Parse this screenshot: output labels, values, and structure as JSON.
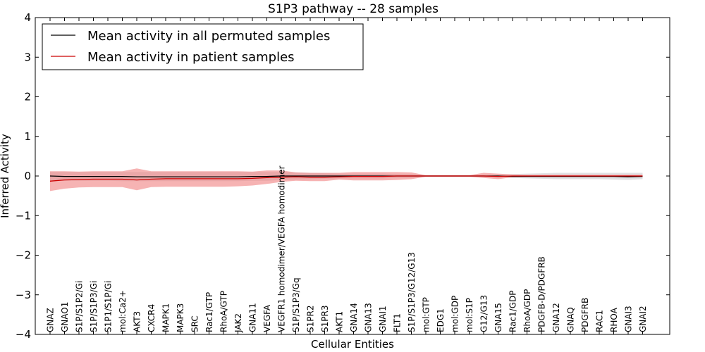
{
  "chart_data": {
    "type": "line",
    "title": "S1P3 pathway -- 28 samples",
    "xlabel": "Cellular Entities",
    "ylabel": "Inferred Activity",
    "ylim": [
      -4,
      4
    ],
    "yticks": [
      "4",
      "3",
      "2",
      "1",
      "0",
      "−1",
      "−2",
      "−3",
      "−4"
    ],
    "ytick_values": [
      4,
      3,
      2,
      1,
      0,
      -1,
      -2,
      -3,
      -4
    ],
    "legend_position": "top-left",
    "categories": [
      "GNAZ",
      "GNAO1",
      "S1P/S1P2/Gi",
      "S1P/S1P3/Gi",
      "S1P1/S1P/Gi",
      "mol:Ca2+",
      "AKT3",
      "CXCR4",
      "MAPK1",
      "MAPK3",
      "SRC",
      "Rac1/GTP",
      "RhoA/GTP",
      "JAK2",
      "GNA11",
      "VEGFA",
      "VEGFR1 homodimer/VEGFA homodimer",
      "S1P/S1P3/Gq",
      "S1PR2",
      "S1PR3",
      "AKT1",
      "GNA14",
      "GNA13",
      "GNAI1",
      "FLT1",
      "S1P/S1P3/G12/G13",
      "mol:GTP",
      "EDG1",
      "mol:GDP",
      "mol:S1P",
      "G12/G13",
      "GNA15",
      "Rac1/GDP",
      "RhoA/GDP",
      "PDGFB-D/PDGFRB",
      "GNA12",
      "GNAQ",
      "PDGFRB",
      "RAC1",
      "RHOA",
      "GNAI3",
      "GNAI2"
    ],
    "series": [
      {
        "name": "Mean activity in all permuted samples",
        "color": "#000000",
        "band_color": "#c8c8cc",
        "values": [
          0.0,
          -0.01,
          -0.01,
          -0.01,
          -0.01,
          -0.01,
          -0.02,
          -0.02,
          -0.02,
          -0.02,
          -0.02,
          -0.02,
          -0.02,
          -0.02,
          -0.01,
          -0.01,
          0.0,
          0.0,
          0.0,
          0.0,
          0.0,
          0.0,
          0.0,
          0.0,
          0.0,
          0.0,
          0.0,
          0.0,
          0.0,
          0.0,
          0.0,
          0.0,
          -0.01,
          -0.01,
          -0.01,
          -0.01,
          -0.01,
          -0.01,
          -0.01,
          -0.01,
          -0.02,
          -0.01
        ],
        "lower": [
          -0.12,
          -0.12,
          -0.12,
          -0.12,
          -0.12,
          -0.13,
          -0.13,
          -0.13,
          -0.13,
          -0.13,
          -0.13,
          -0.13,
          -0.13,
          -0.13,
          -0.12,
          -0.12,
          -0.1,
          -0.09,
          -0.08,
          -0.07,
          -0.06,
          -0.06,
          -0.06,
          -0.06,
          -0.05,
          -0.05,
          -0.02,
          -0.02,
          -0.02,
          -0.02,
          -0.03,
          -0.04,
          -0.05,
          -0.06,
          -0.07,
          -0.08,
          -0.08,
          -0.08,
          -0.08,
          -0.09,
          -0.1,
          -0.08
        ],
        "upper": [
          0.1,
          0.1,
          0.1,
          0.1,
          0.1,
          0.1,
          0.1,
          0.1,
          0.1,
          0.1,
          0.1,
          0.1,
          0.1,
          0.1,
          0.1,
          0.1,
          0.1,
          0.09,
          0.08,
          0.07,
          0.06,
          0.06,
          0.06,
          0.06,
          0.05,
          0.05,
          0.02,
          0.02,
          0.02,
          0.02,
          0.03,
          0.04,
          0.05,
          0.06,
          0.07,
          0.08,
          0.08,
          0.08,
          0.08,
          0.08,
          0.08,
          0.08
        ]
      },
      {
        "name": "Mean activity in patient samples",
        "color": "#cc0000",
        "band_color": "#f08080",
        "values": [
          -0.13,
          -0.1,
          -0.09,
          -0.08,
          -0.08,
          -0.08,
          -0.1,
          -0.08,
          -0.07,
          -0.07,
          -0.07,
          -0.07,
          -0.07,
          -0.07,
          -0.06,
          -0.04,
          -0.03,
          -0.02,
          -0.03,
          -0.03,
          -0.02,
          -0.01,
          -0.01,
          -0.01,
          0.0,
          0.0,
          0.0,
          0.0,
          0.0,
          0.0,
          0.0,
          -0.01,
          0.0,
          0.0,
          0.0,
          0.0,
          0.0,
          0.0,
          0.0,
          0.0,
          0.0,
          0.0
        ],
        "lower": [
          -0.38,
          -0.32,
          -0.29,
          -0.28,
          -0.28,
          -0.28,
          -0.36,
          -0.28,
          -0.27,
          -0.27,
          -0.27,
          -0.27,
          -0.27,
          -0.26,
          -0.24,
          -0.2,
          -0.15,
          -0.12,
          -0.13,
          -0.13,
          -0.09,
          -0.11,
          -0.11,
          -0.11,
          -0.1,
          -0.08,
          -0.02,
          -0.02,
          -0.02,
          -0.02,
          -0.05,
          -0.08,
          -0.03,
          -0.02,
          -0.02,
          -0.02,
          -0.02,
          -0.02,
          -0.02,
          -0.02,
          -0.02,
          -0.02
        ],
        "upper": [
          0.12,
          0.12,
          0.11,
          0.12,
          0.12,
          0.12,
          0.19,
          0.12,
          0.12,
          0.12,
          0.12,
          0.12,
          0.12,
          0.12,
          0.11,
          0.14,
          0.14,
          0.09,
          0.08,
          0.08,
          0.08,
          0.1,
          0.1,
          0.1,
          0.1,
          0.09,
          0.02,
          0.02,
          0.02,
          0.02,
          0.08,
          0.06,
          0.04,
          0.03,
          0.03,
          0.03,
          0.03,
          0.03,
          0.03,
          0.03,
          0.03,
          0.03
        ]
      }
    ]
  }
}
